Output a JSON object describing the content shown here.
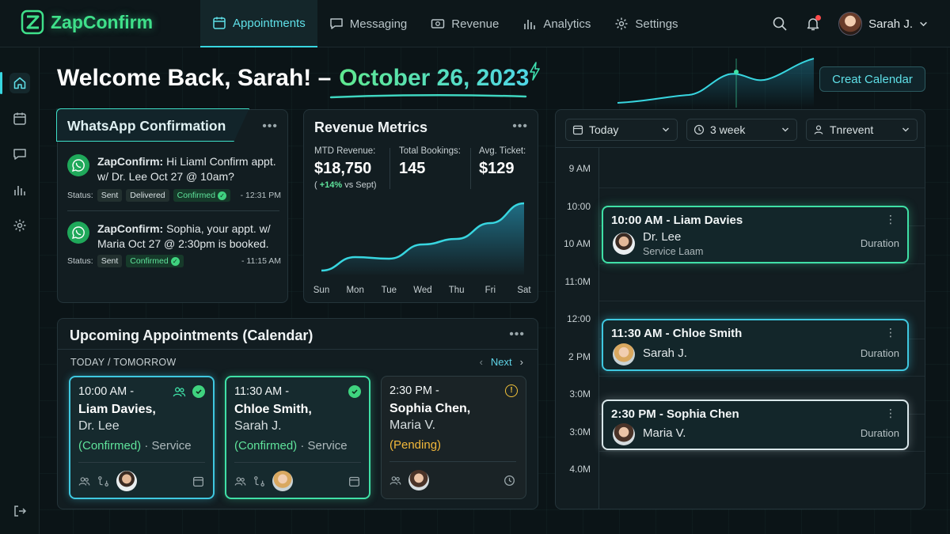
{
  "brand": {
    "name": "ZapConfirm"
  },
  "nav": {
    "items": [
      {
        "label": "Appointments",
        "icon": "calendar-icon",
        "active": true
      },
      {
        "label": "Messaging",
        "icon": "chat-icon"
      },
      {
        "label": "Revenue",
        "icon": "money-icon"
      },
      {
        "label": "Analytics",
        "icon": "bar-chart-icon"
      },
      {
        "label": "Settings",
        "icon": "gear-icon"
      }
    ]
  },
  "user": {
    "name": "Sarah J."
  },
  "header": {
    "greeting": "Welcome Back, Sarah! –",
    "date": "October 26, 2023",
    "create_button": "Creat Calendar"
  },
  "whatsapp": {
    "title": "WhatsApp Confirmation",
    "messages": [
      {
        "sender": "ZapConfirm:",
        "text": " Hi Liaml Confirm appt. w/ Dr. Lee Oct 27 @ 10am?",
        "status_label": "Status:",
        "chips": [
          "Sent",
          "Delivered"
        ],
        "confirmed": "Confirmed",
        "time": "- 12:31 PM"
      },
      {
        "sender": "ZapConfirm:",
        "text": " Sophia, your appt. w/ Maria Oct 27 @ 2:30pm is booked.",
        "status_label": "Status:",
        "chips": [
          "Sent"
        ],
        "confirmed": "Confirmed",
        "time": "- 11:15 AM"
      }
    ]
  },
  "revenue": {
    "title": "Revenue Metrics",
    "metrics": [
      {
        "label": "MTD Revenue:",
        "value": "$18,750",
        "change_prefix": "( ",
        "change": "+14%",
        "change_suffix": " vs Sept)"
      },
      {
        "label": "Total Bookings:",
        "value": "145"
      },
      {
        "label": "Avg. Ticket:",
        "value": "$129"
      }
    ]
  },
  "chart_data": {
    "type": "area",
    "categories": [
      "Sun",
      "Mon",
      "Tue",
      "Wed",
      "Thu",
      "Fri",
      "Sat"
    ],
    "values": [
      5,
      22,
      20,
      38,
      45,
      65,
      90
    ],
    "title": "",
    "xlabel": "",
    "ylabel": "",
    "ylim": [
      0,
      100
    ],
    "grid": false,
    "colors": [
      "#38d6e0",
      "#2bb0d6"
    ]
  },
  "schedule": {
    "filters": [
      {
        "label": "Today",
        "icon": "calendar-icon"
      },
      {
        "label": "3 week",
        "icon": "clock-icon"
      },
      {
        "label": "Tnrevent",
        "icon": "person-icon"
      }
    ],
    "time_labels": [
      "9 AM",
      "10:00",
      "10 AM",
      "11:0M",
      "12:00",
      "2 PM",
      "3:0M",
      "3:0M",
      "4.0M"
    ],
    "events": [
      {
        "title": "10:00 AM - Liam Davies",
        "name": "Dr. Lee",
        "sub": "Service Laam",
        "duration": "Duration"
      },
      {
        "title": "11:30 AM - Chloe Smith",
        "name": "Sarah J.",
        "sub": "",
        "duration": "Duration"
      },
      {
        "title": "2:30 PM - Sophia Chen",
        "name": "Maria V.",
        "sub": "",
        "duration": "Duration"
      }
    ]
  },
  "upcoming": {
    "title": "Upcoming Appointments (Calendar)",
    "subtitle": "TODAY / TOMORROW",
    "next_label": "Next",
    "cards": [
      {
        "time": "10:00 AM -",
        "patient": "Liam Davies,",
        "provider": "Dr. Lee",
        "status": "(Confirmed)",
        "service": " · Service"
      },
      {
        "time": "11:30 AM -",
        "patient": "Chloe Smith,",
        "provider": "Sarah J.",
        "status": "(Confirmed)",
        "service": " · Service"
      },
      {
        "time": "2:30 PM -",
        "patient": "Sophia Chen,",
        "provider": "Maria V.",
        "status": "(Pending)",
        "service": ""
      }
    ]
  }
}
